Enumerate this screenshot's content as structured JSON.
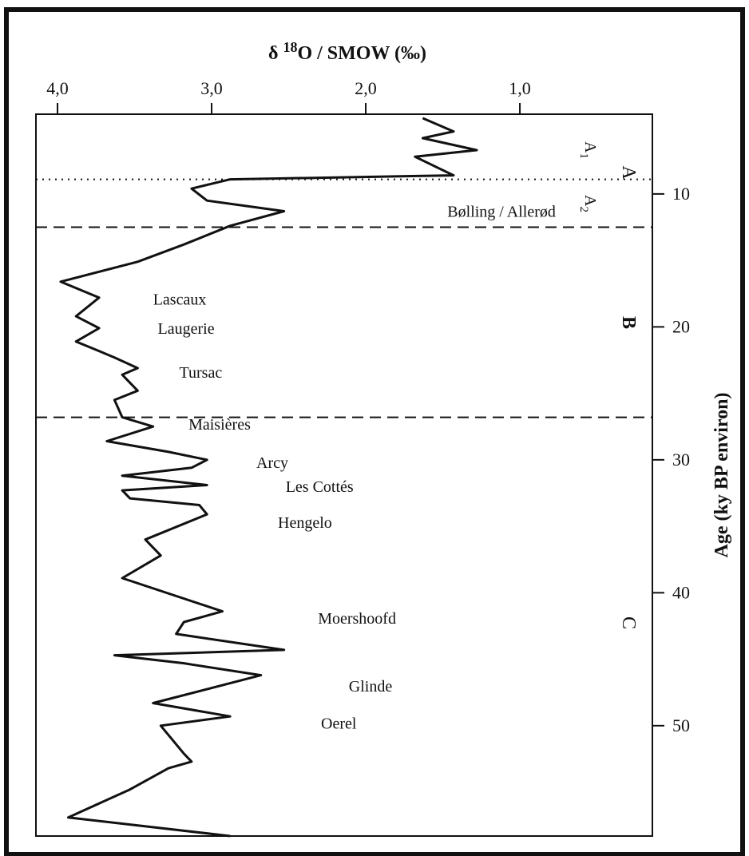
{
  "chart_data": {
    "type": "line",
    "orientation": "vertical-depth",
    "title": "δ 18O / SMOW (‰)",
    "xlabel": "δ 18O / SMOW (‰)",
    "ylabel": "Age (ky BP environ)",
    "x_ticks": [
      "4,0",
      "3,0",
      "2,0",
      "1,0"
    ],
    "x_tick_values": [
      4.0,
      3.0,
      2.0,
      1.0
    ],
    "xlim": [
      4.14,
      0.14
    ],
    "x_reversed": true,
    "y_ticks": [
      10,
      20,
      30,
      40,
      50
    ],
    "ylim": [
      4.0,
      58.3
    ],
    "grid": false,
    "series": [
      {
        "x": [
          1.63,
          1.43,
          1.63,
          1.28,
          1.68,
          1.43,
          2.88,
          3.13,
          3.03,
          2.53,
          2.88,
          3.18,
          3.48,
          3.98,
          3.73,
          3.88,
          3.73,
          3.88,
          3.63,
          3.48,
          3.58,
          3.48,
          3.63,
          3.58,
          3.38,
          3.68,
          3.28,
          3.03,
          3.13,
          3.58,
          3.03,
          3.58,
          3.53,
          3.08,
          3.03,
          3.43,
          3.33,
          3.58,
          2.93,
          3.18,
          3.23,
          2.53,
          3.63,
          3.18,
          3.13,
          2.68,
          3.38,
          2.88,
          3.33,
          3.18,
          3.13,
          3.28,
          3.53,
          3.93,
          2.88
        ],
        "y": [
          4.3,
          5.3,
          5.8,
          6.7,
          7.2,
          8.6,
          8.9,
          9.6,
          10.5,
          11.3,
          12.4,
          13.8,
          15.1,
          16.6,
          17.8,
          19.2,
          20.1,
          21.1,
          22.3,
          23.1,
          23.6,
          24.8,
          25.5,
          26.8,
          27.5,
          28.6,
          29.4,
          30.0,
          30.6,
          31.2,
          31.9,
          32.3,
          32.9,
          33.4,
          34.1,
          36.0,
          37.2,
          38.9,
          41.4,
          42.2,
          43.1,
          44.3,
          44.7,
          45.3,
          45.4,
          46.2,
          48.3,
          49.3,
          50.0,
          52.1,
          52.7,
          53.2,
          54.8,
          56.9,
          58.3
        ]
      }
    ],
    "boundaries": [
      {
        "style": "dotted",
        "y": 8.9
      },
      {
        "style": "dashed",
        "y": 12.5
      },
      {
        "style": "dashed",
        "y": 26.8
      }
    ],
    "zones": [
      "A",
      "B",
      "C"
    ],
    "subzones": [
      {
        "base": "A",
        "sub": "1"
      },
      {
        "base": "A",
        "sub": "2"
      }
    ],
    "annotations": [
      {
        "text": "Bølling / Allerød",
        "x": 1.47,
        "y": 11.3
      },
      {
        "text": "Lascaux",
        "x": 3.38,
        "y": 17.9
      },
      {
        "text": "Laugerie",
        "x": 3.35,
        "y": 20.1
      },
      {
        "text": "Tursac",
        "x": 3.21,
        "y": 23.4
      },
      {
        "text": "Maisières",
        "x": 3.15,
        "y": 27.3
      },
      {
        "text": "Arcy",
        "x": 2.71,
        "y": 30.2
      },
      {
        "text": "Les Cottés",
        "x": 2.52,
        "y": 32.0
      },
      {
        "text": "Hengelo",
        "x": 2.57,
        "y": 34.7
      },
      {
        "text": "Moershoofd",
        "x": 2.31,
        "y": 41.9
      },
      {
        "text": "Glinde",
        "x": 2.11,
        "y": 47.0
      },
      {
        "text": "Oerel",
        "x": 2.29,
        "y": 49.8
      }
    ]
  }
}
